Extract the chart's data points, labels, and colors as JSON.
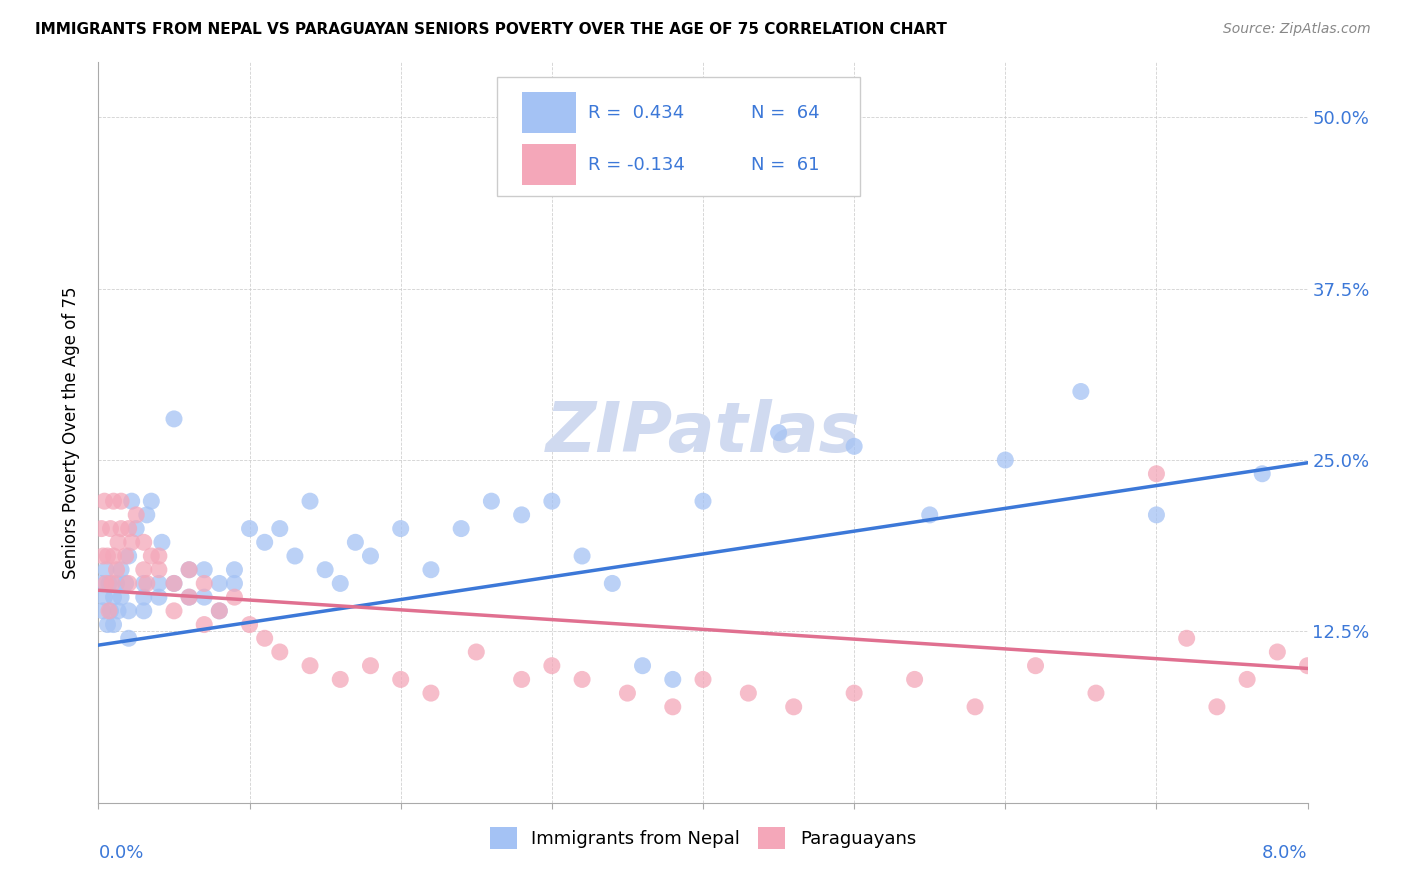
{
  "title": "IMMIGRANTS FROM NEPAL VS PARAGUAYAN SENIORS POVERTY OVER THE AGE OF 75 CORRELATION CHART",
  "source": "Source: ZipAtlas.com",
  "ylabel": "Seniors Poverty Over the Age of 75",
  "ytick_labels": [
    "12.5%",
    "25.0%",
    "37.5%",
    "50.0%"
  ],
  "ytick_values": [
    0.125,
    0.25,
    0.375,
    0.5
  ],
  "xlim": [
    0.0,
    0.08
  ],
  "ylim": [
    0.0,
    0.54
  ],
  "legend_R1": "R =  0.434",
  "legend_N1": "N =  64",
  "legend_R2": "R = -0.134",
  "legend_N2": "N =  61",
  "color_blue": "#a4c2f4",
  "color_pink": "#f4a7b9",
  "color_blue_line": "#3c78d8",
  "color_pink_line": "#e07090",
  "color_blue_label": "#3c78d8",
  "watermark": "ZIPatlas",
  "watermark_color": "#d0daf0",
  "nepal_x": [
    0.0002,
    0.0003,
    0.0004,
    0.0005,
    0.0006,
    0.0007,
    0.0008,
    0.001,
    0.001,
    0.0012,
    0.0013,
    0.0015,
    0.0015,
    0.0018,
    0.002,
    0.002,
    0.002,
    0.0022,
    0.0025,
    0.003,
    0.003,
    0.003,
    0.0032,
    0.0035,
    0.004,
    0.004,
    0.0042,
    0.005,
    0.005,
    0.006,
    0.006,
    0.007,
    0.007,
    0.008,
    0.008,
    0.009,
    0.009,
    0.01,
    0.011,
    0.012,
    0.013,
    0.014,
    0.015,
    0.016,
    0.017,
    0.018,
    0.02,
    0.022,
    0.024,
    0.026,
    0.028,
    0.03,
    0.032,
    0.034,
    0.036,
    0.038,
    0.04,
    0.045,
    0.05,
    0.055,
    0.06,
    0.065,
    0.07,
    0.077
  ],
  "nepal_y": [
    0.16,
    0.14,
    0.15,
    0.17,
    0.13,
    0.16,
    0.14,
    0.15,
    0.13,
    0.16,
    0.14,
    0.15,
    0.17,
    0.16,
    0.14,
    0.18,
    0.12,
    0.22,
    0.2,
    0.16,
    0.14,
    0.15,
    0.21,
    0.22,
    0.15,
    0.16,
    0.19,
    0.28,
    0.16,
    0.17,
    0.15,
    0.17,
    0.15,
    0.16,
    0.14,
    0.17,
    0.16,
    0.2,
    0.19,
    0.2,
    0.18,
    0.22,
    0.17,
    0.16,
    0.19,
    0.18,
    0.2,
    0.17,
    0.2,
    0.22,
    0.21,
    0.22,
    0.18,
    0.16,
    0.1,
    0.09,
    0.22,
    0.27,
    0.26,
    0.21,
    0.25,
    0.3,
    0.21,
    0.24
  ],
  "paraguay_x": [
    0.0002,
    0.0003,
    0.0004,
    0.0005,
    0.0006,
    0.0007,
    0.0008,
    0.0009,
    0.001,
    0.001,
    0.0012,
    0.0013,
    0.0015,
    0.0015,
    0.0018,
    0.002,
    0.002,
    0.0022,
    0.0025,
    0.003,
    0.003,
    0.0032,
    0.0035,
    0.004,
    0.004,
    0.005,
    0.005,
    0.006,
    0.006,
    0.007,
    0.007,
    0.008,
    0.009,
    0.01,
    0.011,
    0.012,
    0.014,
    0.016,
    0.018,
    0.02,
    0.022,
    0.025,
    0.028,
    0.03,
    0.032,
    0.035,
    0.038,
    0.04,
    0.043,
    0.046,
    0.05,
    0.054,
    0.058,
    0.062,
    0.066,
    0.07,
    0.072,
    0.074,
    0.076,
    0.078,
    0.08
  ],
  "paraguay_y": [
    0.2,
    0.18,
    0.22,
    0.16,
    0.18,
    0.14,
    0.2,
    0.16,
    0.22,
    0.18,
    0.17,
    0.19,
    0.2,
    0.22,
    0.18,
    0.16,
    0.2,
    0.19,
    0.21,
    0.19,
    0.17,
    0.16,
    0.18,
    0.17,
    0.18,
    0.16,
    0.14,
    0.15,
    0.17,
    0.16,
    0.13,
    0.14,
    0.15,
    0.13,
    0.12,
    0.11,
    0.1,
    0.09,
    0.1,
    0.09,
    0.08,
    0.11,
    0.09,
    0.1,
    0.09,
    0.08,
    0.07,
    0.09,
    0.08,
    0.07,
    0.08,
    0.09,
    0.07,
    0.1,
    0.08,
    0.24,
    0.12,
    0.07,
    0.09,
    0.11,
    0.1
  ],
  "blue_line_x": [
    0.0,
    0.08
  ],
  "blue_line_y": [
    0.115,
    0.248
  ],
  "pink_line_x": [
    0.0,
    0.08
  ],
  "pink_line_y": [
    0.155,
    0.098
  ]
}
